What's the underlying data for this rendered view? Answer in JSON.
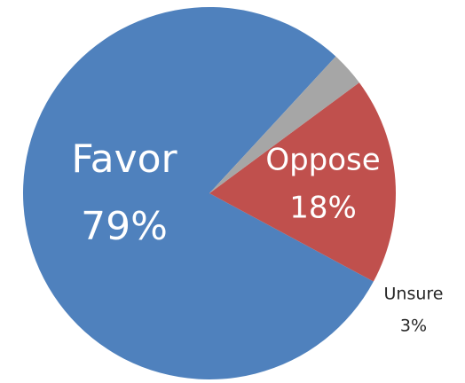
{
  "chart_data": {
    "type": "pie",
    "categories": [
      "Favor",
      "Oppose",
      "Unsure"
    ],
    "values": [
      79,
      18,
      3
    ],
    "labels": [
      "79%",
      "18%",
      "3%"
    ],
    "colors": [
      "#4f81bd",
      "#c0504d",
      "#a6a6a6"
    ],
    "title": "",
    "legend": "none"
  }
}
